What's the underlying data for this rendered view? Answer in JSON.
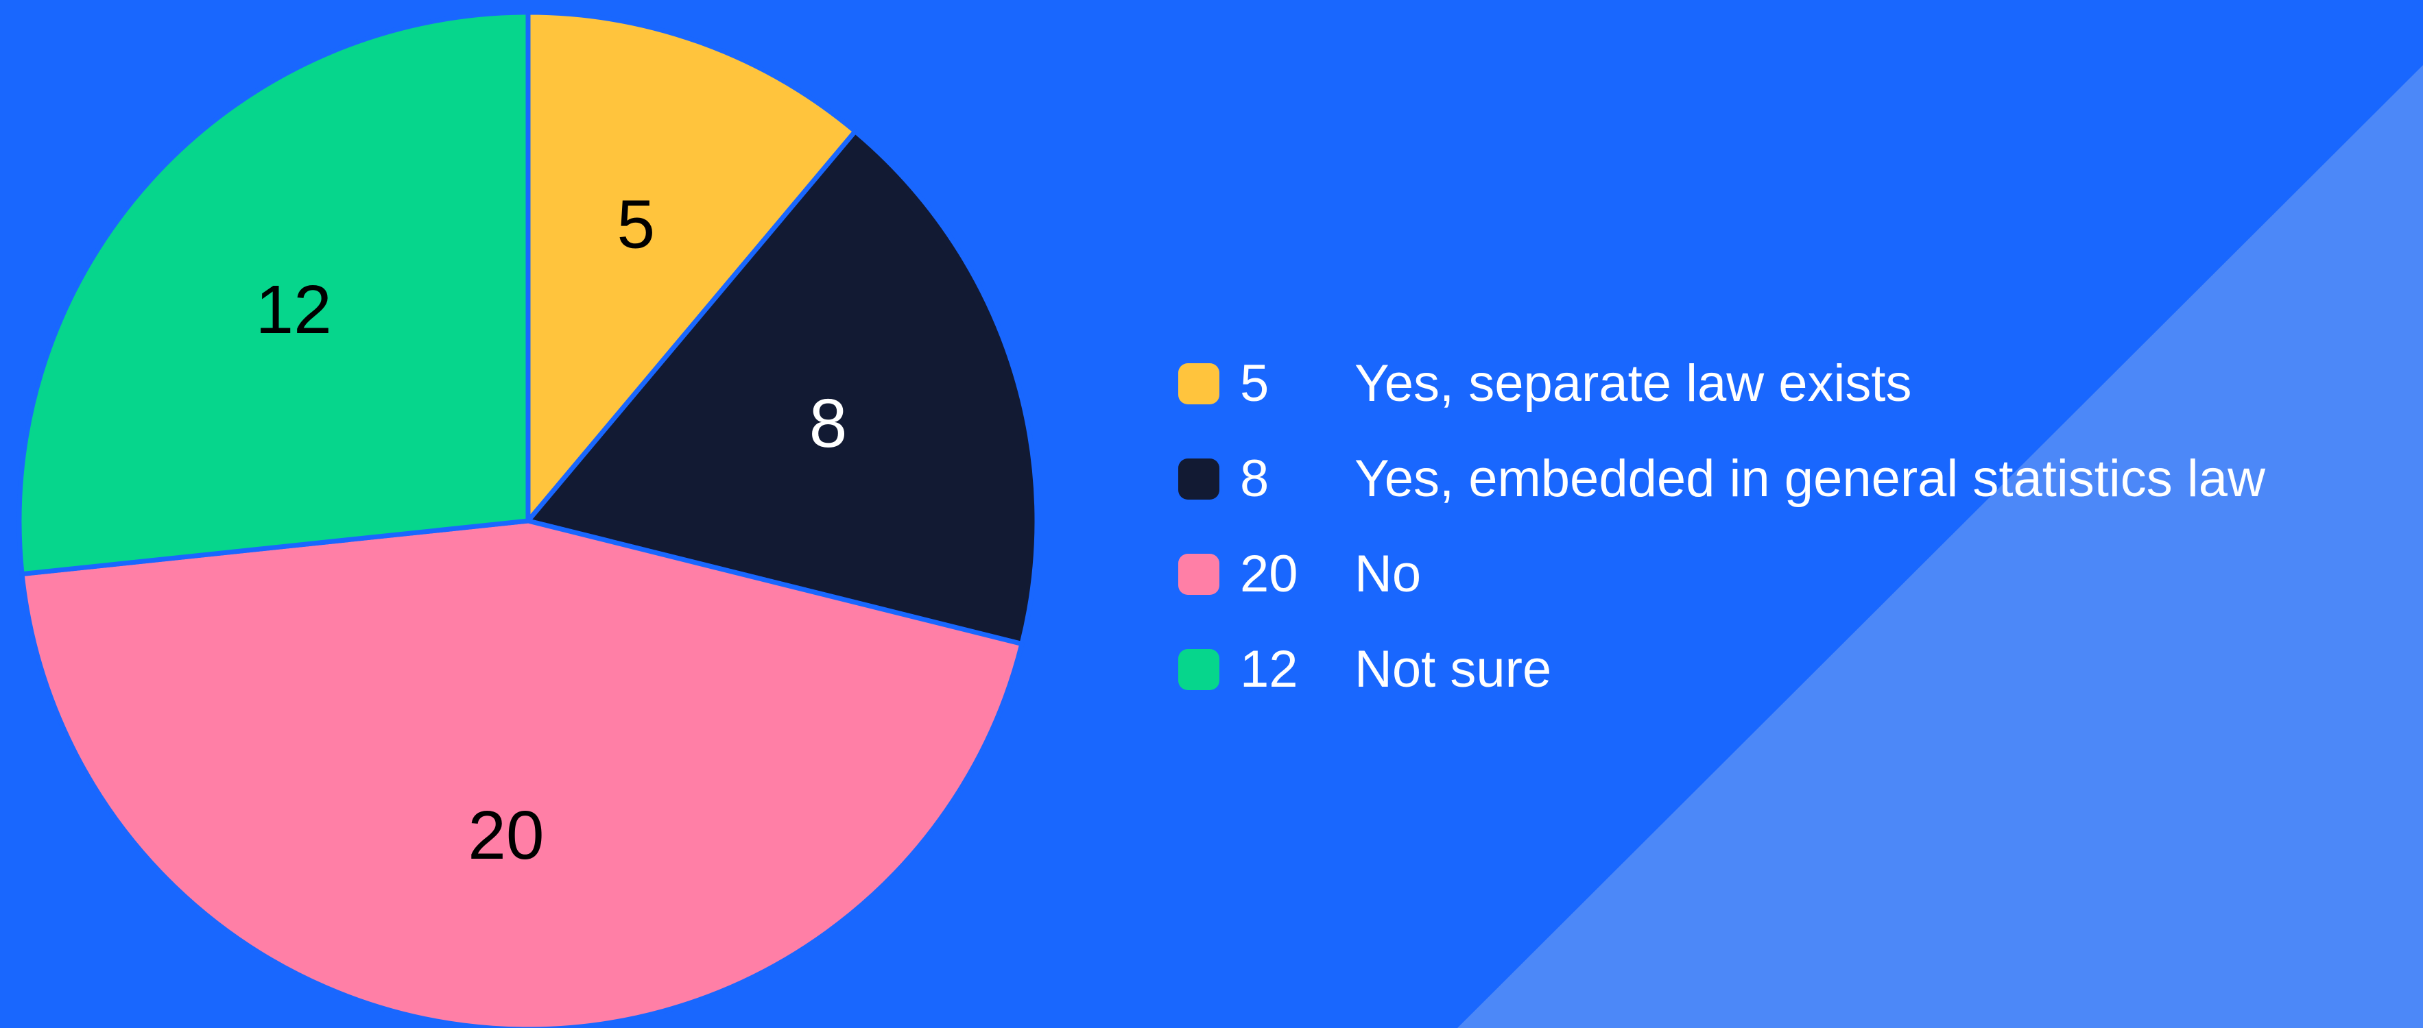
{
  "chart_data": {
    "type": "pie",
    "title": "",
    "slices": [
      {
        "value": 5,
        "label": "Yes, separate law exists",
        "color": "#ffc43d"
      },
      {
        "value": 8,
        "label": "Yes, embedded in general statistics law",
        "color": "#121a33"
      },
      {
        "value": 20,
        "label": "No",
        "color": "#ff7fa6"
      },
      {
        "value": 12,
        "label": "Not sure",
        "color": "#06d68c"
      }
    ],
    "legend_position": "right",
    "label_colors": [
      "#000000",
      "#ffffff",
      "#000000",
      "#000000"
    ]
  },
  "theme": {
    "background": "#1967fe",
    "background_accent": "#4c88f8"
  }
}
